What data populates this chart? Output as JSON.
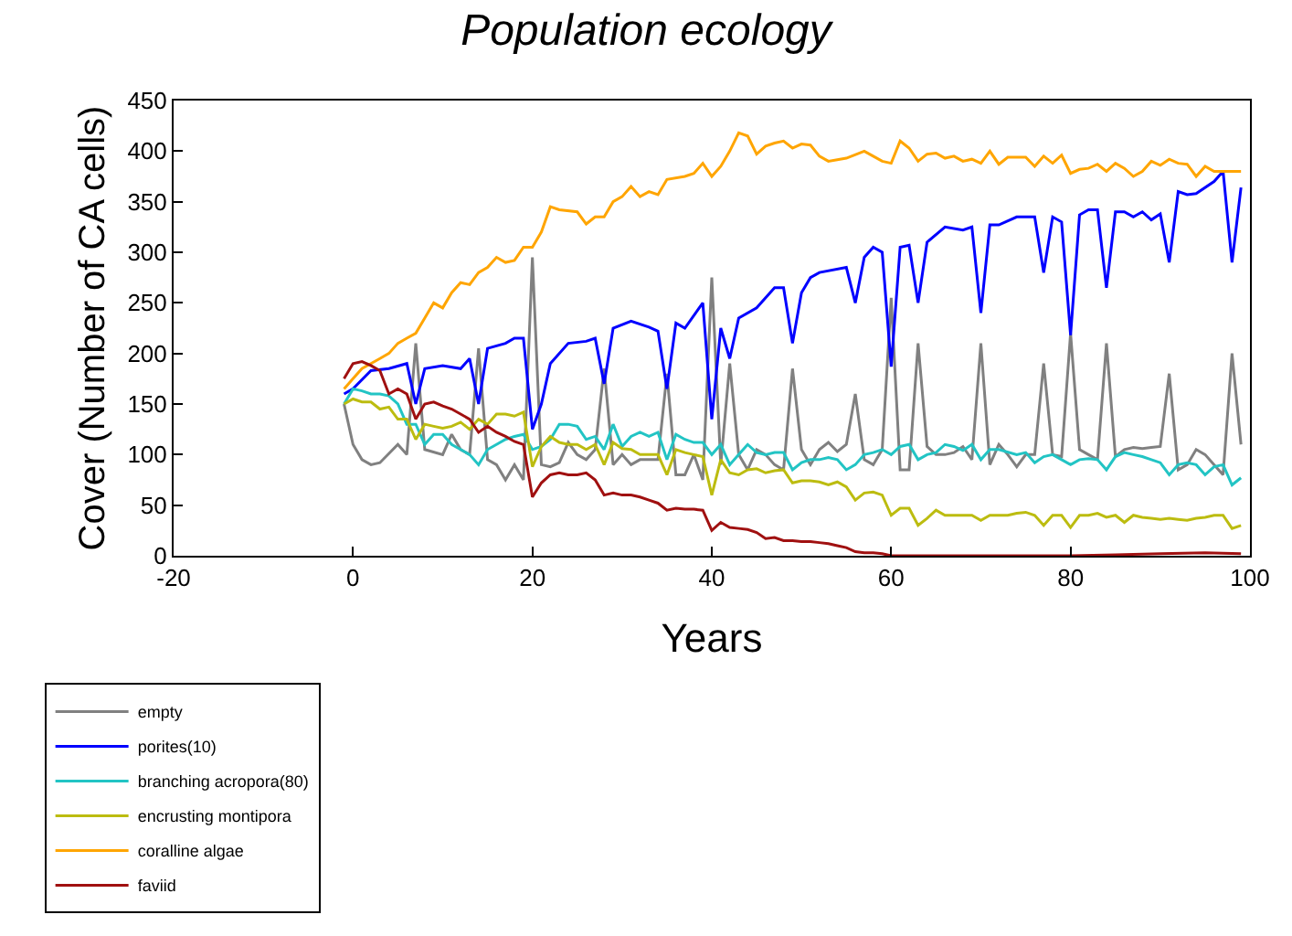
{
  "chart_data": {
    "type": "line",
    "title": "Population ecology",
    "xlabel": "Years",
    "ylabel": "Cover (Number of CA cells)",
    "xlim": [
      -20,
      100
    ],
    "xticks": [
      -20,
      0,
      20,
      40,
      60,
      80,
      100
    ],
    "ylim": [
      0,
      450
    ],
    "yticks": [
      0,
      50,
      100,
      150,
      200,
      250,
      300,
      350,
      400,
      450
    ],
    "legend": "bottom left",
    "marker": "none",
    "line_style": "solid",
    "series": [
      {
        "name": "empty",
        "color": "#808080",
        "x": [
          -1,
          0,
          1,
          2,
          3,
          5,
          6,
          7,
          8,
          10,
          11,
          12,
          13,
          14,
          15,
          16,
          17,
          18,
          19,
          20,
          21,
          22,
          23,
          24,
          25,
          26,
          27,
          28,
          29,
          30,
          31,
          32,
          33,
          34,
          35,
          36,
          37,
          38,
          39,
          40,
          41,
          42,
          43,
          44,
          45,
          46,
          47,
          48,
          49,
          50,
          51,
          52,
          53,
          54,
          55,
          56,
          57,
          58,
          59,
          60,
          61,
          62,
          63,
          64,
          65,
          66,
          67,
          68,
          69,
          70,
          71,
          72,
          73,
          74,
          75,
          76,
          77,
          78,
          79,
          80,
          81,
          82,
          83,
          84,
          85,
          86,
          87,
          88,
          89,
          90,
          91,
          92,
          93,
          94,
          95,
          96,
          97,
          98,
          99
        ],
        "values": [
          150,
          110,
          95,
          90,
          92,
          110,
          100,
          210,
          105,
          100,
          120,
          105,
          100,
          205,
          95,
          90,
          75,
          90,
          75,
          295,
          90,
          88,
          92,
          112,
          100,
          95,
          105,
          185,
          90,
          100,
          90,
          95,
          95,
          95,
          180,
          80,
          80,
          100,
          75,
          275,
          90,
          190,
          100,
          85,
          105,
          100,
          90,
          85,
          185,
          105,
          90,
          105,
          112,
          103,
          110,
          160,
          95,
          90,
          105,
          255,
          85,
          85,
          210,
          108,
          100,
          100,
          102,
          108,
          95,
          210,
          90,
          110,
          100,
          88,
          100,
          100,
          190,
          100,
          98,
          220,
          105,
          100,
          95,
          210,
          98,
          105,
          107,
          106,
          107,
          108,
          180,
          85,
          90,
          105,
          100,
          90,
          80,
          200,
          110
        ]
      },
      {
        "name": "porites(10)",
        "color": "#0000ff",
        "x": [
          -1,
          0,
          2,
          4,
          6,
          7,
          8,
          10,
          12,
          13,
          14,
          15,
          17,
          18,
          19,
          20,
          21,
          22,
          24,
          26,
          27,
          28,
          29,
          31,
          33,
          34,
          35,
          36,
          37,
          39,
          40,
          41,
          42,
          43,
          45,
          47,
          48,
          49,
          50,
          51,
          52,
          55,
          56,
          57,
          58,
          59,
          60,
          61,
          62,
          63,
          64,
          66,
          68,
          69,
          70,
          71,
          72,
          74,
          76,
          77,
          78,
          79,
          80,
          81,
          82,
          83,
          84,
          85,
          86,
          87,
          88,
          89,
          90,
          91,
          92,
          93,
          94,
          96,
          97,
          98,
          99
        ],
        "values": [
          160,
          165,
          183,
          185,
          190,
          150,
          185,
          188,
          185,
          195,
          150,
          205,
          210,
          215,
          215,
          125,
          150,
          190,
          210,
          212,
          215,
          170,
          225,
          232,
          226,
          222,
          165,
          230,
          225,
          250,
          135,
          225,
          195,
          235,
          245,
          265,
          265,
          210,
          260,
          275,
          280,
          285,
          250,
          295,
          305,
          300,
          187,
          305,
          307,
          250,
          310,
          325,
          322,
          325,
          240,
          327,
          327,
          335,
          335,
          280,
          335,
          330,
          218,
          337,
          342,
          342,
          265,
          340,
          340,
          335,
          340,
          332,
          338,
          290,
          360,
          357,
          358,
          370,
          380,
          290,
          364
        ]
      },
      {
        "name": "branching acropora(80)",
        "color": "#22c4c4",
        "x": [
          -1,
          0,
          1,
          2,
          3,
          4,
          5,
          6,
          7,
          8,
          9,
          10,
          11,
          12,
          13,
          14,
          15,
          16,
          17,
          18,
          19,
          20,
          21,
          22,
          23,
          24,
          25,
          26,
          27,
          28,
          29,
          30,
          31,
          32,
          33,
          34,
          35,
          36,
          37,
          38,
          39,
          40,
          41,
          42,
          43,
          44,
          45,
          46,
          47,
          48,
          49,
          50,
          51,
          52,
          53,
          54,
          55,
          56,
          57,
          58,
          59,
          60,
          61,
          62,
          63,
          64,
          65,
          66,
          67,
          68,
          69,
          70,
          71,
          72,
          74,
          75,
          76,
          77,
          78,
          79,
          80,
          81,
          82,
          83,
          84,
          85,
          86,
          87,
          88,
          89,
          90,
          91,
          92,
          93,
          94,
          95,
          96,
          97,
          98,
          99
        ],
        "values": [
          150,
          165,
          163,
          160,
          160,
          158,
          150,
          130,
          130,
          110,
          120,
          120,
          110,
          105,
          100,
          90,
          105,
          110,
          115,
          118,
          120,
          105,
          108,
          115,
          130,
          130,
          128,
          115,
          118,
          105,
          130,
          108,
          118,
          122,
          118,
          122,
          95,
          120,
          115,
          112,
          112,
          100,
          110,
          90,
          100,
          110,
          102,
          100,
          102,
          102,
          85,
          92,
          95,
          95,
          97,
          95,
          85,
          90,
          100,
          102,
          105,
          100,
          108,
          110,
          95,
          100,
          102,
          110,
          108,
          104,
          110,
          95,
          105,
          105,
          100,
          102,
          92,
          98,
          100,
          95,
          90,
          95,
          96,
          95,
          85,
          98,
          102,
          100,
          98,
          95,
          92,
          80,
          90,
          92,
          90,
          80,
          88,
          90,
          70,
          77
        ]
      },
      {
        "name": "encrusting montipora",
        "color": "#bcbc10",
        "x": [
          -1,
          0,
          1,
          2,
          3,
          4,
          5,
          6,
          7,
          8,
          9,
          10,
          11,
          12,
          13,
          14,
          15,
          16,
          17,
          18,
          19,
          20,
          21,
          22,
          23,
          24,
          25,
          26,
          27,
          28,
          29,
          30,
          31,
          32,
          33,
          34,
          35,
          36,
          37,
          38,
          39,
          40,
          41,
          42,
          43,
          44,
          45,
          46,
          47,
          48,
          49,
          50,
          51,
          52,
          53,
          54,
          55,
          56,
          57,
          58,
          59,
          60,
          61,
          62,
          63,
          64,
          65,
          66,
          67,
          68,
          69,
          70,
          71,
          72,
          73,
          74,
          75,
          76,
          77,
          78,
          79,
          80,
          81,
          82,
          83,
          84,
          85,
          86,
          87,
          88,
          89,
          90,
          91,
          92,
          93,
          94,
          95,
          96,
          97,
          98,
          99
        ],
        "values": [
          150,
          155,
          152,
          152,
          145,
          147,
          135,
          135,
          115,
          130,
          128,
          126,
          128,
          132,
          125,
          135,
          130,
          140,
          140,
          138,
          142,
          88,
          108,
          118,
          112,
          110,
          110,
          105,
          110,
          90,
          112,
          106,
          105,
          100,
          100,
          100,
          80,
          105,
          102,
          100,
          98,
          60,
          95,
          82,
          80,
          85,
          86,
          82,
          84,
          85,
          72,
          74,
          74,
          73,
          70,
          73,
          68,
          55,
          62,
          63,
          60,
          40,
          47,
          47,
          30,
          37,
          45,
          40,
          40,
          40,
          40,
          35,
          40,
          40,
          40,
          42,
          43,
          40,
          30,
          40,
          40,
          28,
          40,
          40,
          42,
          38,
          40,
          33,
          40,
          38,
          37,
          36,
          37,
          36,
          35,
          37,
          38,
          40,
          40,
          27,
          30
        ]
      },
      {
        "name": "coralline algae",
        "color": "#ffa500",
        "x": [
          -1,
          0,
          1,
          2,
          3,
          4,
          5,
          6,
          7,
          8,
          9,
          10,
          11,
          12,
          13,
          14,
          15,
          16,
          17,
          18,
          19,
          20,
          21,
          22,
          23,
          25,
          26,
          27,
          28,
          29,
          30,
          31,
          32,
          33,
          34,
          35,
          37,
          38,
          39,
          40,
          41,
          42,
          43,
          44,
          45,
          46,
          47,
          48,
          49,
          50,
          51,
          52,
          53,
          55,
          57,
          58,
          59,
          60,
          61,
          62,
          63,
          64,
          65,
          66,
          67,
          68,
          69,
          70,
          71,
          72,
          73,
          75,
          76,
          77,
          78,
          79,
          80,
          81,
          82,
          83,
          84,
          85,
          86,
          87,
          88,
          89,
          90,
          91,
          92,
          93,
          94,
          95,
          96,
          97,
          99
        ],
        "values": [
          165,
          175,
          185,
          190,
          195,
          200,
          210,
          215,
          220,
          235,
          250,
          245,
          260,
          270,
          268,
          280,
          285,
          295,
          290,
          292,
          305,
          305,
          320,
          345,
          342,
          340,
          328,
          335,
          335,
          350,
          355,
          365,
          355,
          360,
          357,
          372,
          375,
          378,
          388,
          375,
          385,
          400,
          418,
          415,
          397,
          405,
          408,
          410,
          403,
          407,
          406,
          395,
          390,
          393,
          400,
          395,
          390,
          388,
          410,
          403,
          390,
          397,
          398,
          393,
          395,
          390,
          392,
          388,
          400,
          387,
          394,
          394,
          385,
          395,
          388,
          396,
          378,
          382,
          383,
          387,
          380,
          388,
          383,
          375,
          380,
          390,
          386,
          392,
          388,
          387,
          375,
          385,
          380,
          380,
          380
        ]
      },
      {
        "name": "faviid",
        "color": "#a01010",
        "x": [
          -1,
          0,
          1,
          2,
          3,
          4,
          5,
          6,
          7,
          8,
          9,
          10,
          11,
          12,
          13,
          14,
          15,
          16,
          17,
          18,
          19,
          20,
          21,
          22,
          23,
          24,
          25,
          26,
          27,
          28,
          29,
          30,
          31,
          32,
          33,
          34,
          35,
          36,
          37,
          38,
          39,
          40,
          41,
          42,
          43,
          44,
          45,
          46,
          47,
          48,
          49,
          50,
          51,
          52,
          53,
          54,
          55,
          56,
          57,
          58,
          59,
          60,
          65,
          70,
          75,
          80,
          85,
          90,
          95,
          99
        ],
        "values": [
          175,
          190,
          192,
          188,
          183,
          160,
          165,
          160,
          135,
          150,
          152,
          148,
          145,
          140,
          135,
          122,
          128,
          122,
          118,
          113,
          110,
          58,
          72,
          80,
          82,
          80,
          80,
          82,
          75,
          60,
          62,
          60,
          60,
          58,
          55,
          52,
          45,
          47,
          46,
          46,
          45,
          25,
          33,
          28,
          27,
          26,
          23,
          17,
          18,
          15,
          15,
          14,
          14,
          13,
          12,
          10,
          8,
          4,
          3,
          3,
          2,
          0,
          0,
          0,
          0,
          0,
          1,
          2,
          3,
          2
        ]
      }
    ]
  }
}
